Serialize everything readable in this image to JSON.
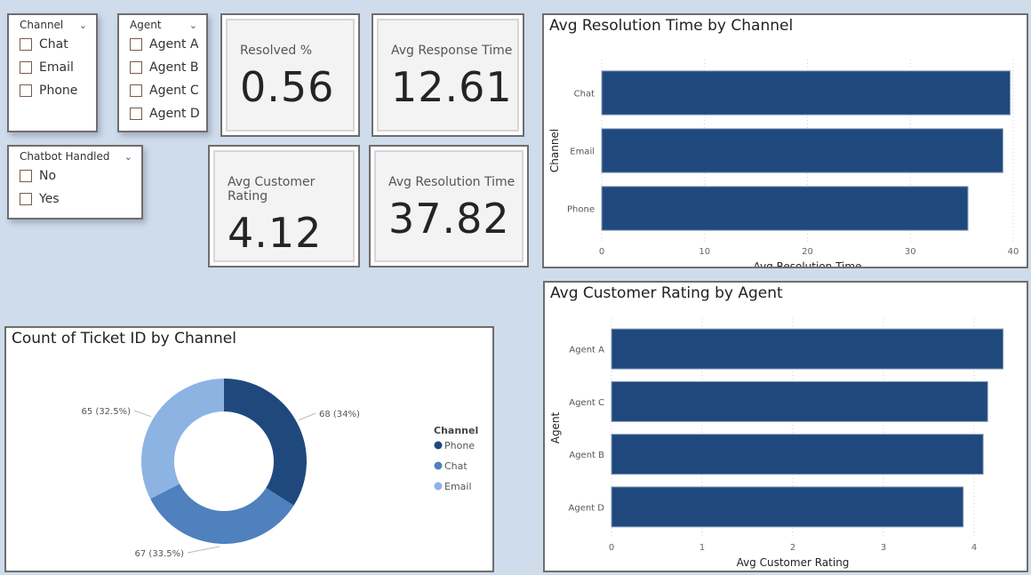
{
  "slicers": {
    "channel": {
      "title": "Channel",
      "items": [
        "Chat",
        "Email",
        "Phone"
      ]
    },
    "agent": {
      "title": "Agent",
      "items": [
        "Agent A",
        "Agent B",
        "Agent C",
        "Agent D"
      ]
    },
    "chatbot": {
      "title": "Chatbot Handled",
      "items": [
        "No",
        "Yes"
      ]
    }
  },
  "cards": {
    "resolved": {
      "label": "Resolved %",
      "value": "0.56"
    },
    "response": {
      "label": "Avg Response Time",
      "value": "12.61"
    },
    "rating": {
      "label": "Avg Customer Rating",
      "value": "4.12"
    },
    "resolution": {
      "label": "Avg Resolution Time",
      "value": "37.82"
    }
  },
  "chart_data": [
    {
      "type": "bar",
      "orientation": "horizontal",
      "title": "Avg Resolution Time by Channel",
      "xlabel": "Avg Resolution Time",
      "ylabel": "Channel",
      "categories": [
        "Chat",
        "Email",
        "Phone"
      ],
      "values": [
        39.7,
        39.0,
        35.6
      ],
      "xlim": [
        0,
        40
      ],
      "ticks": [
        "0",
        "10",
        "20",
        "30",
        "40"
      ],
      "grid": true,
      "color": "#1f497d"
    },
    {
      "type": "bar",
      "orientation": "horizontal",
      "title": "Avg Customer Rating by Agent",
      "xlabel": "Avg Customer Rating",
      "ylabel": "Agent",
      "categories": [
        "Agent A",
        "Agent C",
        "Agent B",
        "Agent D"
      ],
      "values": [
        4.32,
        4.15,
        4.1,
        3.88
      ],
      "xlim": [
        0,
        4.3
      ],
      "ticks": [
        "0",
        "1",
        "2",
        "3",
        "4"
      ],
      "grid": true,
      "color": "#1f497d"
    },
    {
      "type": "pie",
      "donut": true,
      "title": "Count of Ticket ID by Channel",
      "legend_title": "Channel",
      "legend_position": "right",
      "categories": [
        "Phone",
        "Chat",
        "Email"
      ],
      "values": [
        68,
        67,
        65
      ],
      "labels": [
        "68 (34%)",
        "67 (33.5%)",
        "65 (32.5%)"
      ],
      "colors": [
        "#1f497d",
        "#4e81bd",
        "#8db3e2"
      ]
    }
  ]
}
